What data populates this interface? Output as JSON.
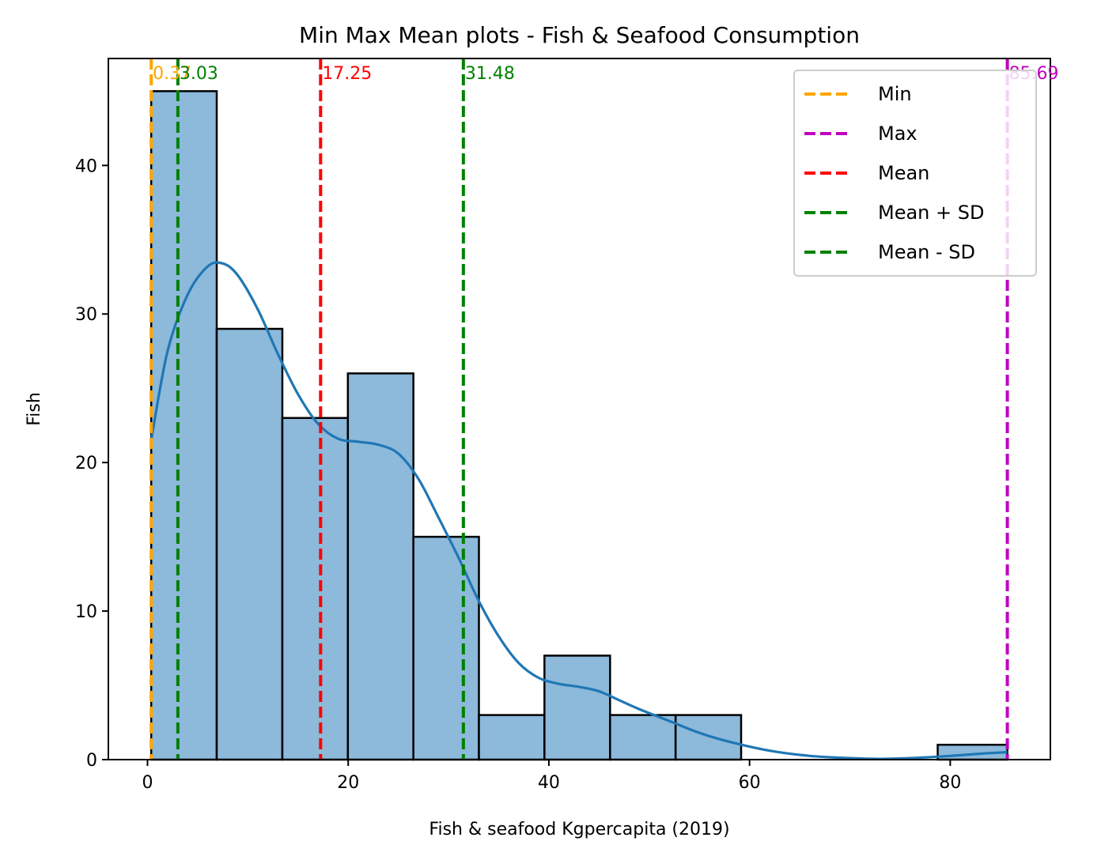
{
  "chart_data": {
    "type": "bar",
    "title": "Min Max Mean plots - Fish & Seafood Consumption",
    "xlabel": "Fish & seafood Kgpercapita (2019)",
    "ylabel": "Fish",
    "xlim": [
      -3.9,
      89.98
    ],
    "ylim": [
      0,
      47.2
    ],
    "x_ticks": [
      0,
      20,
      40,
      60,
      80
    ],
    "y_ticks": [
      0,
      10,
      20,
      30,
      40
    ],
    "bins": [
      {
        "x0": 0.37,
        "x1": 6.9,
        "count": 45
      },
      {
        "x0": 6.9,
        "x1": 13.44,
        "count": 29
      },
      {
        "x0": 13.44,
        "x1": 19.97,
        "count": 23
      },
      {
        "x0": 19.97,
        "x1": 26.5,
        "count": 26
      },
      {
        "x0": 26.5,
        "x1": 33.03,
        "count": 15
      },
      {
        "x0": 33.03,
        "x1": 39.56,
        "count": 3
      },
      {
        "x0": 39.56,
        "x1": 46.1,
        "count": 7
      },
      {
        "x0": 46.1,
        "x1": 52.63,
        "count": 3
      },
      {
        "x0": 52.63,
        "x1": 59.16,
        "count": 3
      },
      {
        "x0": 59.16,
        "x1": 65.69,
        "count": 0
      },
      {
        "x0": 65.69,
        "x1": 72.22,
        "count": 0
      },
      {
        "x0": 72.22,
        "x1": 78.75,
        "count": 0
      },
      {
        "x0": 78.75,
        "x1": 85.69,
        "count": 1
      }
    ],
    "kde": {
      "x": [
        0.37,
        2,
        4,
        6,
        7.5,
        9,
        11,
        13,
        15,
        17,
        19,
        21,
        23,
        25,
        27,
        29,
        31,
        33,
        35,
        37,
        39,
        41,
        43,
        45,
        47,
        49,
        52,
        55,
        58,
        62,
        66,
        70,
        73,
        76,
        80,
        83,
        85.69
      ],
      "y": [
        21.5,
        27.5,
        31.3,
        33.2,
        33.4,
        32.6,
        30.3,
        27.3,
        24.6,
        22.6,
        21.6,
        21.4,
        21.2,
        20.6,
        18.9,
        16.3,
        13.6,
        10.7,
        8.3,
        6.5,
        5.5,
        5.1,
        4.9,
        4.6,
        4.0,
        3.4,
        2.6,
        1.8,
        1.2,
        0.6,
        0.25,
        0.1,
        0.05,
        0.1,
        0.25,
        0.4,
        0.5
      ]
    },
    "vlines": [
      {
        "name": "Min",
        "value": 0.37,
        "label": "0.37",
        "color": "#ffa500"
      },
      {
        "name": "Max",
        "value": 85.69,
        "label": "85.69",
        "color": "#bf00bf"
      },
      {
        "name": "Mean",
        "value": 17.25,
        "label": "17.25",
        "color": "#ff0000"
      },
      {
        "name": "Mean + SD",
        "value": 31.48,
        "label": "31.48",
        "color": "#008000"
      },
      {
        "name": "Mean - SD",
        "value": 3.03,
        "label": "3.03",
        "color": "#008000"
      }
    ],
    "legend": {
      "position": "top-right",
      "entries": [
        {
          "label": "Min",
          "color": "#ffa500"
        },
        {
          "label": "Max",
          "color": "#bf00bf"
        },
        {
          "label": "Mean",
          "color": "#ff0000"
        },
        {
          "label": "Mean + SD",
          "color": "#008000"
        },
        {
          "label": "Mean - SD",
          "color": "#008000"
        }
      ]
    },
    "colors": {
      "bar_fill": "#8db9da",
      "bar_edge": "#000000",
      "kde_line": "#1f77b4"
    },
    "grid": false
  }
}
